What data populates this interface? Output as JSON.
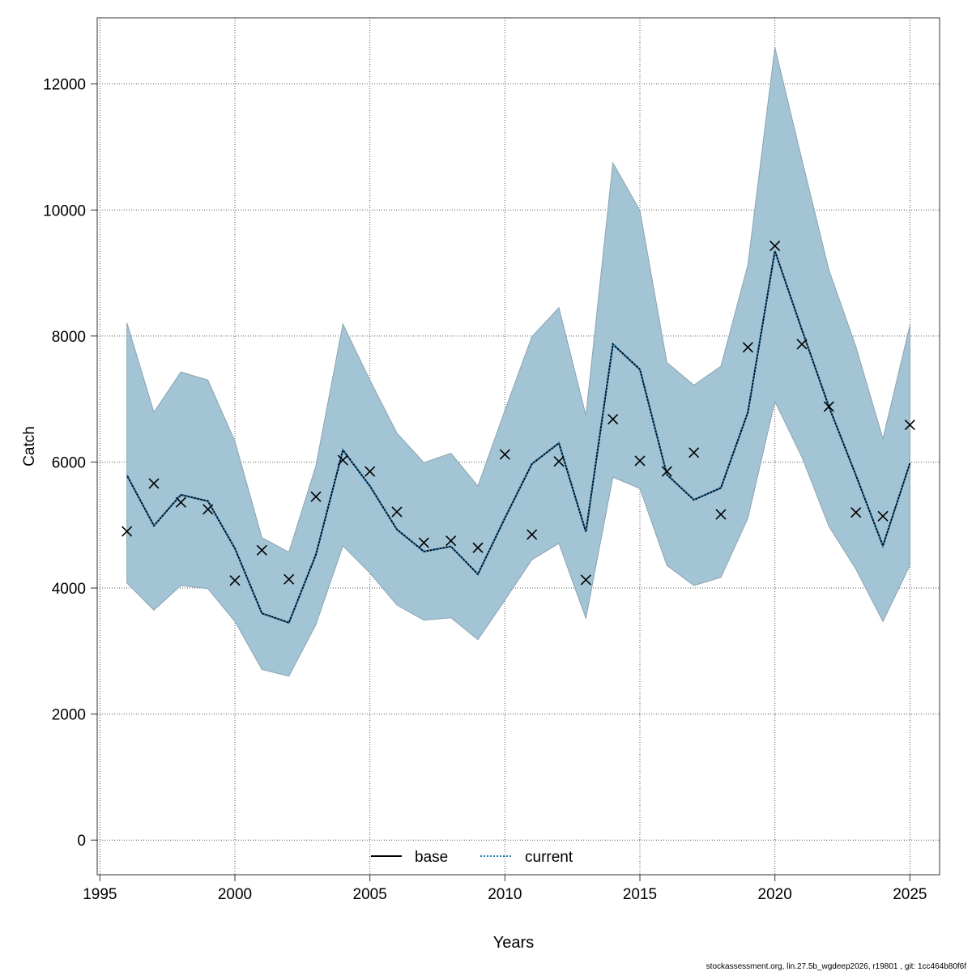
{
  "chart_data": {
    "type": "line",
    "title": "",
    "xlabel": "Years",
    "ylabel": "Catch",
    "xlim": [
      1994.9,
      2026.1
    ],
    "ylim": [
      -550,
      13050
    ],
    "xticks": [
      1995,
      2000,
      2005,
      2010,
      2015,
      2020,
      2025
    ],
    "yticks": [
      0,
      2000,
      4000,
      6000,
      8000,
      10000,
      12000
    ],
    "grid": true,
    "legend": {
      "position": "bottom",
      "entries": [
        {
          "label": "base",
          "style": "solid",
          "color": "#000000"
        },
        {
          "label": "current",
          "style": "dotted",
          "color": "#1f78b4"
        }
      ]
    },
    "x": [
      1996,
      1997,
      1998,
      1999,
      2000,
      2001,
      2002,
      2003,
      2004,
      2005,
      2006,
      2007,
      2008,
      2009,
      2010,
      2011,
      2012,
      2013,
      2014,
      2015,
      2016,
      2017,
      2018,
      2019,
      2020,
      2021,
      2022,
      2023,
      2024,
      2025
    ],
    "series": [
      {
        "name": "base",
        "values": [
          5790,
          4990,
          5480,
          5380,
          4630,
          3600,
          3450,
          4530,
          6190,
          5620,
          4930,
          4580,
          4660,
          4220,
          5110,
          5970,
          6300,
          4890,
          7870,
          7470,
          5800,
          5400,
          5590,
          6790,
          9350,
          8100,
          6880,
          5790,
          4670,
          5980
        ]
      },
      {
        "name": "current",
        "values": [
          5790,
          4990,
          5480,
          5380,
          4630,
          3600,
          3450,
          4530,
          6190,
          5620,
          4930,
          4580,
          4660,
          4220,
          5110,
          5970,
          6300,
          4890,
          7870,
          7470,
          5800,
          5400,
          5590,
          6790,
          9350,
          8100,
          6880,
          5790,
          4670,
          5980
        ]
      },
      {
        "name": "upper",
        "values": [
          8210,
          6790,
          7430,
          7300,
          6330,
          4800,
          4570,
          5940,
          8190,
          7300,
          6460,
          5990,
          6140,
          5620,
          6820,
          7990,
          8450,
          6740,
          10750,
          9990,
          7580,
          7220,
          7520,
          9130,
          12580,
          10800,
          9050,
          7830,
          6370,
          8170
        ]
      },
      {
        "name": "lower",
        "values": [
          4080,
          3650,
          4040,
          3990,
          3470,
          2710,
          2600,
          3420,
          4670,
          4240,
          3730,
          3490,
          3530,
          3180,
          3810,
          4450,
          4710,
          3520,
          5760,
          5580,
          4360,
          4040,
          4170,
          5110,
          6960,
          6080,
          4980,
          4300,
          3470,
          4360
        ]
      },
      {
        "name": "observed",
        "values": [
          4900,
          5660,
          5360,
          5250,
          4120,
          4600,
          4140,
          5450,
          6030,
          5850,
          5210,
          4720,
          4750,
          4640,
          6120,
          4850,
          6010,
          4130,
          6680,
          6020,
          5850,
          6150,
          5170,
          7820,
          9430,
          7870,
          6880,
          5200,
          5140,
          6590
        ]
      }
    ],
    "band_color": "#a3c4d5",
    "footer": "stockassessment.org, lin.27.5b_wgdeep2026, r19801 , git: 1cc464b80f6f"
  }
}
